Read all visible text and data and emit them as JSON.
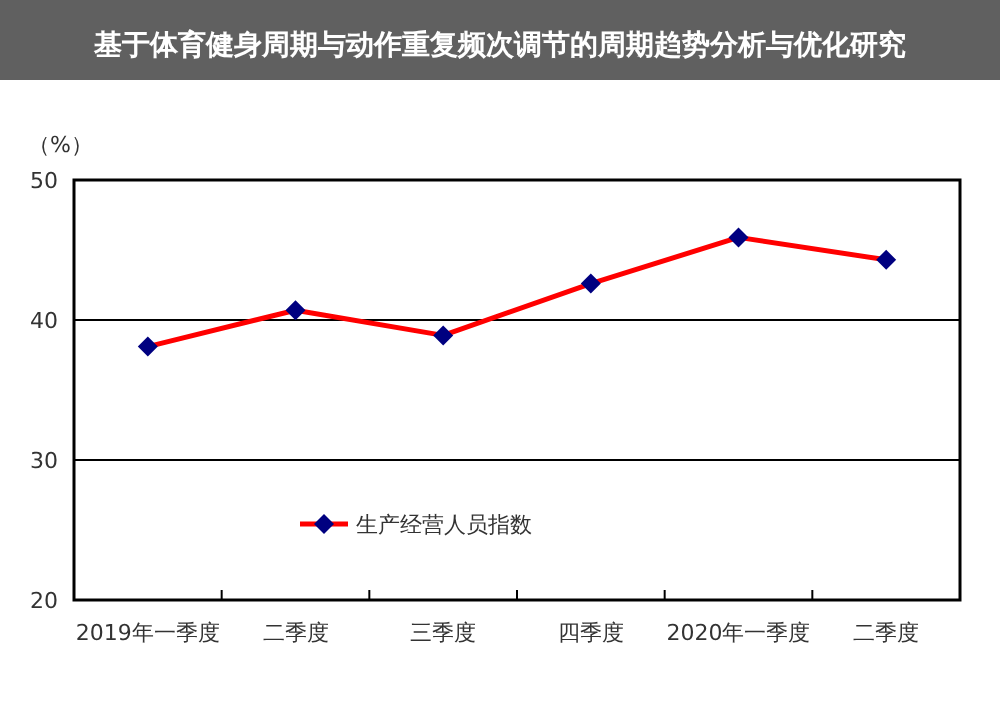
{
  "chart_data": {
    "type": "line",
    "title": "基于体育健身周期与动作重复频次调节的周期趋势分析与优化研究",
    "ylabel": "（%）",
    "categories": [
      "2019年一季度",
      "二季度",
      "三季度",
      "四季度",
      "2020年一季度",
      "二季度"
    ],
    "series": [
      {
        "name": "生产经营人员指数",
        "color": "#ff0000",
        "values": [
          38.1,
          40.7,
          38.9,
          42.6,
          45.9,
          44.3
        ]
      }
    ],
    "ylim": [
      20,
      50
    ],
    "yticks": [
      20,
      30,
      40,
      50
    ],
    "grid": "y",
    "legend": "bottom",
    "marker": "diamond",
    "line_style": "solid"
  }
}
